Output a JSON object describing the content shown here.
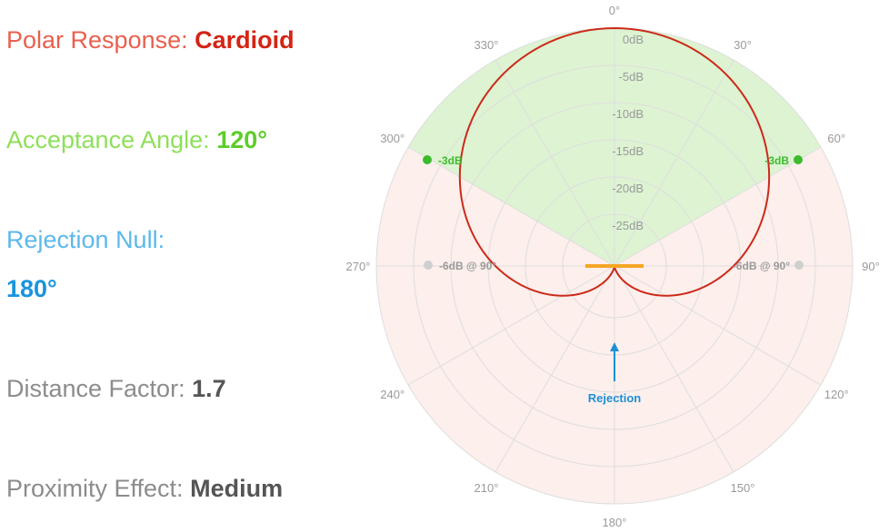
{
  "info": {
    "polar_response": {
      "label": "Polar Response:",
      "value": "Cardioid"
    },
    "acceptance_angle": {
      "label": "Acceptance Angle:",
      "value": "120°"
    },
    "rejection_null": {
      "label": "Rejection Null:",
      "value": "180°"
    },
    "distance_factor": {
      "label": "Distance Factor:",
      "value": "1.7"
    },
    "proximity_effect": {
      "label": "Proximity Effect:",
      "value": "Medium"
    }
  },
  "polar": {
    "angle_labels": [
      "0°",
      "30°",
      "60°",
      "90°",
      "120°",
      "150°",
      "180°",
      "210°",
      "240°",
      "270°",
      "300°",
      "330°"
    ],
    "db_labels": [
      "0dB",
      "-5dB",
      "-10dB",
      "-15dB",
      "-20dB",
      "-25dB"
    ],
    "acceptance_marker_label": "-3dB",
    "side_marker_label": "-6dB @ 90°",
    "rejection_label": "Rejection",
    "acceptance_angle_deg": 120,
    "rejection_angle_deg": 180
  },
  "colors": {
    "polar_response": "#e03a2c",
    "polar_response_value": "#d42414",
    "acceptance": "#8ee05a",
    "acceptance_value": "#5ccd2a",
    "rejection": "#5db8ea",
    "rejection_value": "#1a94de",
    "distance_label": "#8c8c8c",
    "distance_value": "#555555",
    "cardioid_curve": "#cc2a1a",
    "acceptance_fill": "#ddf3d2",
    "rear_fill": "#fcefec",
    "capsule": "#f5a623",
    "marker_green": "#3cbc2c",
    "marker_gray": "#cfcfcf"
  }
}
